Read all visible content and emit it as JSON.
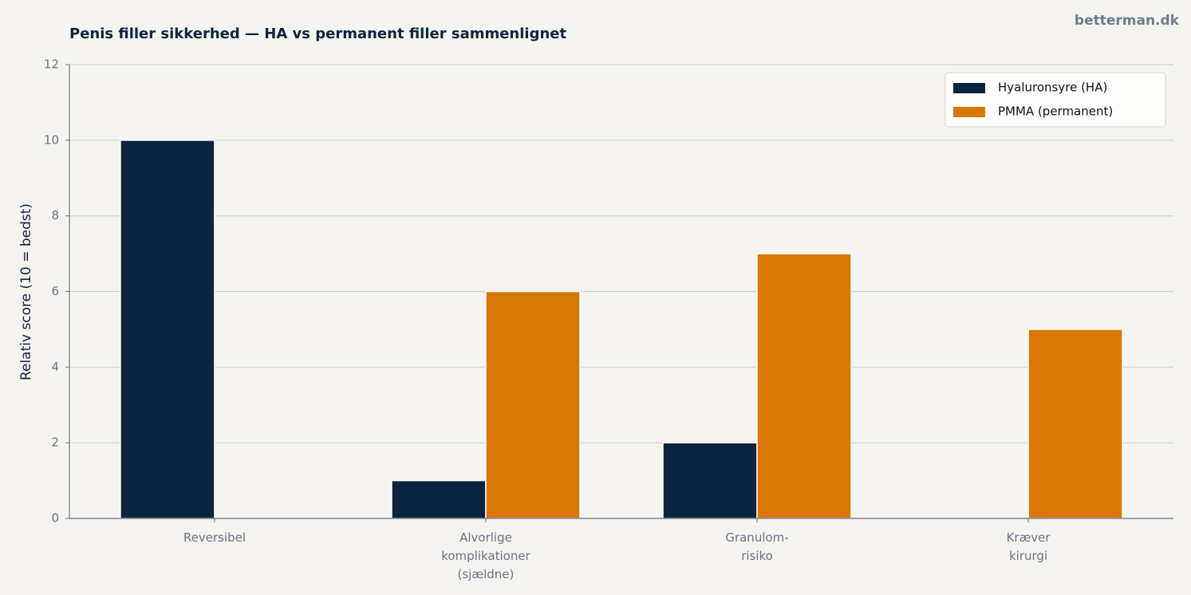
{
  "chart_data": {
    "type": "bar",
    "title": "Penis filler sikkerhed — HA vs permanent filler sammenlignet",
    "watermark": "betterman.dk",
    "y_label": "Relativ score (10 = bedst)",
    "categories": [
      "Reversibel",
      "Alvorlige\nkomplikationer\n(sjældne)",
      "Granulom-\nrisiko",
      "Kræver\nkirurgi"
    ],
    "series": [
      {
        "name": "Hyaluronsyre (HA)",
        "color": "#0b2540",
        "values": [
          10,
          1,
          2,
          0
        ]
      },
      {
        "name": "PMMA (permanent)",
        "color": "#d97706",
        "values": [
          0,
          6,
          7,
          5
        ]
      }
    ],
    "ylim": [
      0,
      12
    ],
    "yticks": [
      0,
      2,
      4,
      6,
      8,
      10,
      12
    ],
    "grid": true,
    "legend": "upper right"
  }
}
